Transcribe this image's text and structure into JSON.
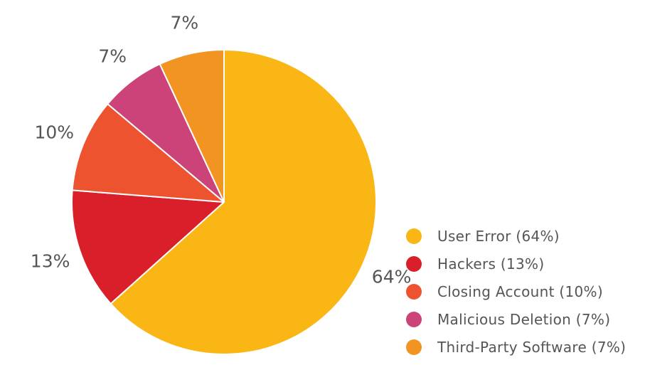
{
  "chart_data": {
    "type": "pie",
    "slices": [
      {
        "label": "User Error",
        "value": 64,
        "value_label": "64%",
        "legend_label": "User Error (64%)",
        "color": "#F9B614"
      },
      {
        "label": "Hackers",
        "value": 13,
        "value_label": "13%",
        "legend_label": "Hackers (13%)",
        "color": "#D9202A"
      },
      {
        "label": "Closing Account",
        "value": 10,
        "value_label": "10%",
        "legend_label": "Closing Account (10%)",
        "color": "#EE5330"
      },
      {
        "label": "Malicious Deletion",
        "value": 7,
        "value_label": "7%",
        "legend_label": "Malicious Deletion (7%)",
        "color": "#CC437A"
      },
      {
        "label": "Third-Party Software",
        "value": 7,
        "value_label": "7%",
        "legend_label": "Third-Party Software (7%)",
        "color": "#F29421"
      }
    ],
    "start": "12 o'clock",
    "direction": "clockwise",
    "legend_position": "bottom-right",
    "value_labels": "outside"
  }
}
